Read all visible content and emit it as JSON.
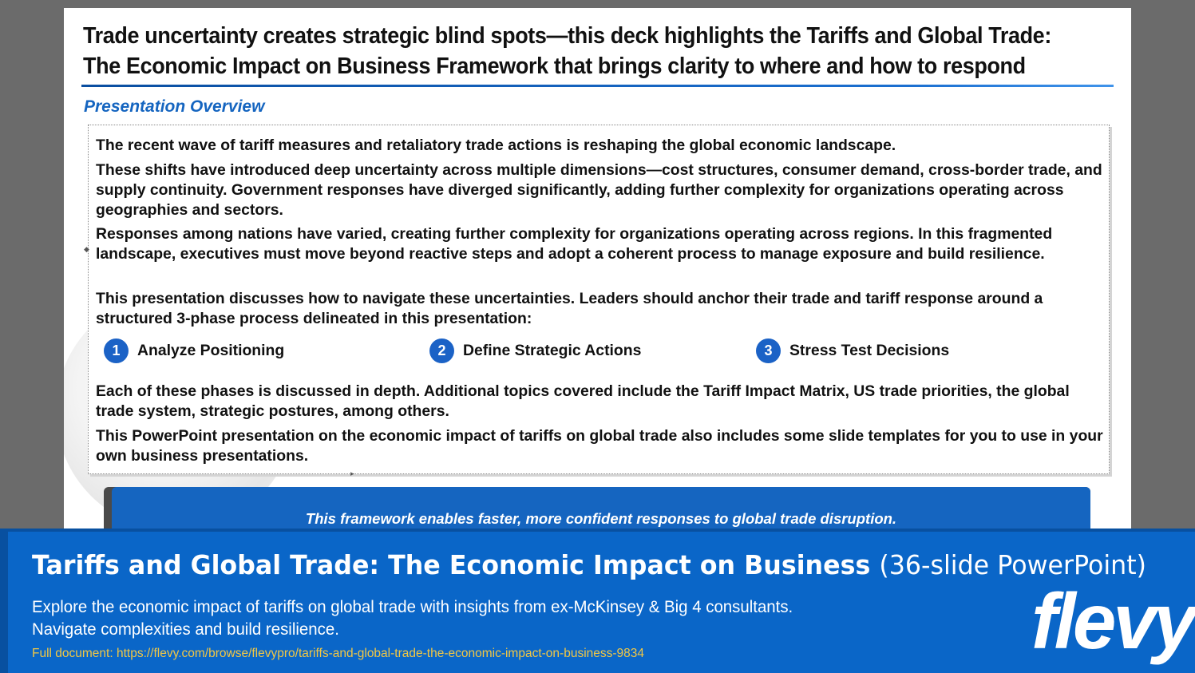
{
  "slide": {
    "title_line1": "Trade uncertainty creates strategic blind spots—this deck highlights the Tariffs and Global Trade:",
    "title_line2": "The Economic Impact on Business Framework that brings clarity to where and how to respond",
    "subtitle": "Presentation Overview",
    "paragraphs": [
      "The recent wave of tariff measures and retaliatory trade actions is reshaping the global economic landscape.",
      "These shifts have introduced deep uncertainty across multiple dimensions—cost structures, consumer demand, cross-border trade, and supply continuity. Government responses have diverged significantly, adding further complexity for organizations operating across geographies and sectors.",
      "Responses among nations have varied, creating further complexity for organizations operating across regions. In this fragmented landscape, executives must move beyond reactive steps and adopt a coherent process to manage exposure and build resilience.",
      "This presentation discusses how to navigate these uncertainties.  Leaders should anchor their trade and tariff response around a structured 3-phase process delineated in this presentation:",
      "Each of these phases is discussed in depth. Additional topics covered include the Tariff Impact Matrix, US trade priorities, the global trade system, strategic postures, among others.",
      "This PowerPoint presentation on the economic impact of tariffs on global trade also includes some slide templates for you to use in your own business presentations."
    ],
    "phases": [
      {
        "number": "1",
        "label": "Analyze Positioning"
      },
      {
        "number": "2",
        "label": "Define Strategic Actions"
      },
      {
        "number": "3",
        "label": "Stress Test Decisions"
      }
    ],
    "callout": "This framework enables faster, more confident responses to global trade disruption."
  },
  "footer": {
    "title_main": "Tariffs and Global Trade: The Economic Impact on Business",
    "title_suffix": "(36-slide PowerPoint)",
    "description": "Explore the economic impact of tariffs on global trade with insights from ex-McKinsey & Big 4 consultants. Navigate complexities and build resilience.",
    "link": "Full document: https://flevy.com/browse/flevypro/tariffs-and-global-trade-the-economic-impact-on-business-9834",
    "logo": "flevy"
  },
  "colors": {
    "accent_blue": "#1565c0",
    "footer_blue": "#0a66c8",
    "link_yellow": "#f2c744",
    "background_gray": "#6b6b6b"
  }
}
